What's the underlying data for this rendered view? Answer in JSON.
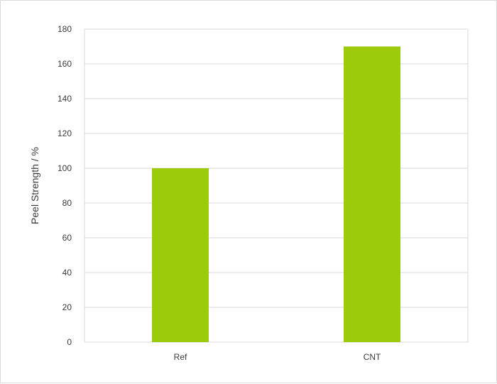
{
  "chart_data": {
    "type": "bar",
    "title": "",
    "xlabel": "",
    "ylabel": "Peel Strength / %",
    "categories": [
      "Ref",
      "CNT"
    ],
    "values": [
      100,
      170
    ],
    "ylim": [
      0,
      180
    ],
    "yticks": [
      0,
      20,
      40,
      60,
      80,
      100,
      120,
      140,
      160,
      180
    ],
    "grid": true,
    "legend": "none",
    "colors": {
      "bar": "#9ccb0c",
      "grid": "#d9d9d9",
      "text": "#3a3a3a"
    }
  }
}
